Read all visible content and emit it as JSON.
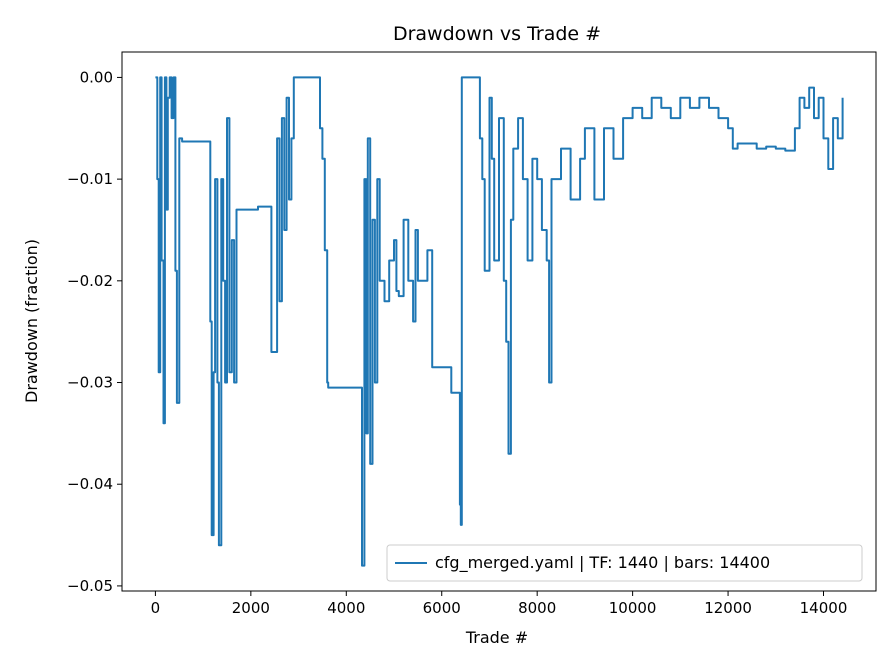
{
  "chart_data": {
    "type": "line",
    "title": "Drawdown vs Trade #",
    "xlabel": "Trade #",
    "ylabel": "Drawdown (fraction)",
    "xlim": [
      -700,
      15100
    ],
    "ylim": [
      -0.0505,
      0.0025
    ],
    "xticks": [
      0,
      2000,
      4000,
      6000,
      8000,
      10000,
      12000,
      14000
    ],
    "xtick_labels": [
      "0",
      "2000",
      "4000",
      "6000",
      "8000",
      "10000",
      "12000",
      "14000"
    ],
    "yticks": [
      0.0,
      -0.01,
      -0.02,
      -0.03,
      -0.04,
      -0.05
    ],
    "ytick_labels": [
      "0.00",
      "−0.01",
      "−0.02",
      "−0.03",
      "−0.04",
      "−0.05"
    ],
    "grid": false,
    "legend_position": "lower-right",
    "series": [
      {
        "name": "cfg_merged.yaml | TF: 1440 | bars: 14400",
        "color": "#1f77b4",
        "x": [
          0,
          40,
          70,
          100,
          130,
          170,
          200,
          230,
          260,
          300,
          340,
          380,
          420,
          450,
          500,
          540,
          560,
          600,
          1100,
          1150,
          1180,
          1220,
          1250,
          1300,
          1330,
          1380,
          1420,
          1460,
          1500,
          1550,
          1600,
          1650,
          1700,
          1730,
          1800,
          2100,
          2150,
          2200,
          2400,
          2430,
          2480,
          2550,
          2600,
          2650,
          2700,
          2750,
          2800,
          2850,
          2900,
          3000,
          3200,
          3400,
          3450,
          3500,
          3550,
          3600,
          3620,
          3700,
          4300,
          4330,
          4380,
          4420,
          4450,
          4500,
          4550,
          4600,
          4650,
          4700,
          4800,
          4900,
          5000,
          5050,
          5100,
          5200,
          5300,
          5400,
          5450,
          5500,
          5600,
          5700,
          5800,
          6000,
          6200,
          6300,
          6380,
          6400,
          6420,
          6450,
          6700,
          6800,
          6850,
          6900,
          7000,
          7050,
          7100,
          7200,
          7300,
          7350,
          7400,
          7450,
          7500,
          7600,
          7700,
          7800,
          7900,
          8000,
          8100,
          8200,
          8250,
          8300,
          8500,
          8700,
          8900,
          9000,
          9200,
          9400,
          9600,
          9800,
          10000,
          10200,
          10400,
          10600,
          10800,
          11000,
          11200,
          11400,
          11600,
          11800,
          12000,
          12100,
          12200,
          12400,
          12600,
          12800,
          13000,
          13100,
          13200,
          13400,
          13500,
          13600,
          13700,
          13800,
          13900,
          14000,
          14100,
          14200,
          14300,
          14400
        ],
        "y": [
          0.0,
          -0.01,
          -0.029,
          0.0,
          -0.018,
          -0.034,
          0.0,
          -0.013,
          -0.002,
          0.0,
          -0.004,
          0.0,
          -0.019,
          -0.032,
          -0.006,
          -0.006,
          -0.0063,
          -0.0063,
          -0.0063,
          -0.024,
          -0.045,
          -0.029,
          -0.01,
          -0.03,
          -0.046,
          -0.01,
          -0.02,
          -0.03,
          -0.004,
          -0.029,
          -0.016,
          -0.03,
          -0.013,
          -0.013,
          -0.013,
          -0.013,
          -0.0127,
          -0.0127,
          -0.0127,
          -0.027,
          -0.027,
          -0.006,
          -0.022,
          -0.004,
          -0.015,
          -0.002,
          -0.012,
          -0.006,
          0.0,
          0.0,
          0.0,
          0.0,
          -0.005,
          -0.008,
          -0.017,
          -0.03,
          -0.0305,
          -0.0305,
          -0.0305,
          -0.048,
          -0.01,
          -0.035,
          -0.006,
          -0.038,
          -0.014,
          -0.03,
          -0.01,
          -0.02,
          -0.022,
          -0.018,
          -0.016,
          -0.021,
          -0.0215,
          -0.014,
          -0.02,
          -0.024,
          -0.015,
          -0.02,
          -0.02,
          -0.017,
          -0.0285,
          -0.0285,
          -0.031,
          -0.031,
          -0.042,
          -0.044,
          0.0,
          0.0,
          0.0,
          -0.006,
          -0.01,
          -0.019,
          -0.002,
          -0.008,
          -0.018,
          -0.004,
          -0.02,
          -0.026,
          -0.037,
          -0.014,
          -0.007,
          -0.004,
          -0.01,
          -0.018,
          -0.008,
          -0.01,
          -0.015,
          -0.018,
          -0.03,
          -0.01,
          -0.007,
          -0.012,
          -0.008,
          -0.005,
          -0.012,
          -0.005,
          -0.008,
          -0.004,
          -0.003,
          -0.004,
          -0.002,
          -0.003,
          -0.004,
          -0.002,
          -0.003,
          -0.002,
          -0.003,
          -0.004,
          -0.005,
          -0.007,
          -0.0065,
          -0.0065,
          -0.007,
          -0.0068,
          -0.007,
          -0.007,
          -0.0072,
          -0.005,
          -0.002,
          -0.003,
          -0.001,
          -0.004,
          -0.002,
          -0.006,
          -0.009,
          -0.004,
          -0.006,
          -0.002
        ]
      }
    ]
  }
}
